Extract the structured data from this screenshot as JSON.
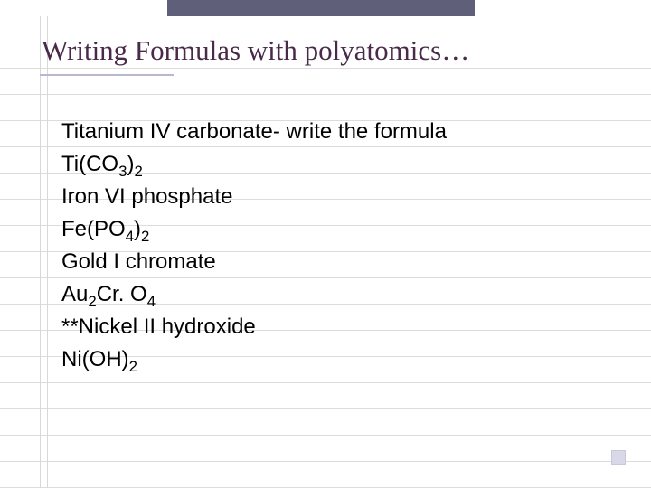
{
  "title": "Writing Formulas with polyatomics…",
  "lines": {
    "l1_text": "Titanium IV carbonate- write the formula",
    "l2_prefix": "Ti(CO",
    "l2_sub1": "3",
    "l2_mid": ")",
    "l2_sub2": "2",
    "l3_text": "Iron VI phosphate",
    "l4_prefix": "Fe(PO",
    "l4_sub1": "4",
    "l4_mid": ")",
    "l4_sub2": "2",
    "l5_text": "Gold I chromate",
    "l6_prefix": "Au",
    "l6_sub1": "2",
    "l6_mid1": "Cr. O",
    "l6_sub2": "4",
    "l7_text": "**Nickel II hydroxide",
    "l8_prefix": "Ni(OH)",
    "l8_sub1": "2"
  },
  "colors": {
    "title_color": "#4a2a4a",
    "body_color": "#000000",
    "topbar_color": "#5f5f7a",
    "underline_color": "#b8b8d0",
    "rule_color": "#dcdcdc"
  }
}
